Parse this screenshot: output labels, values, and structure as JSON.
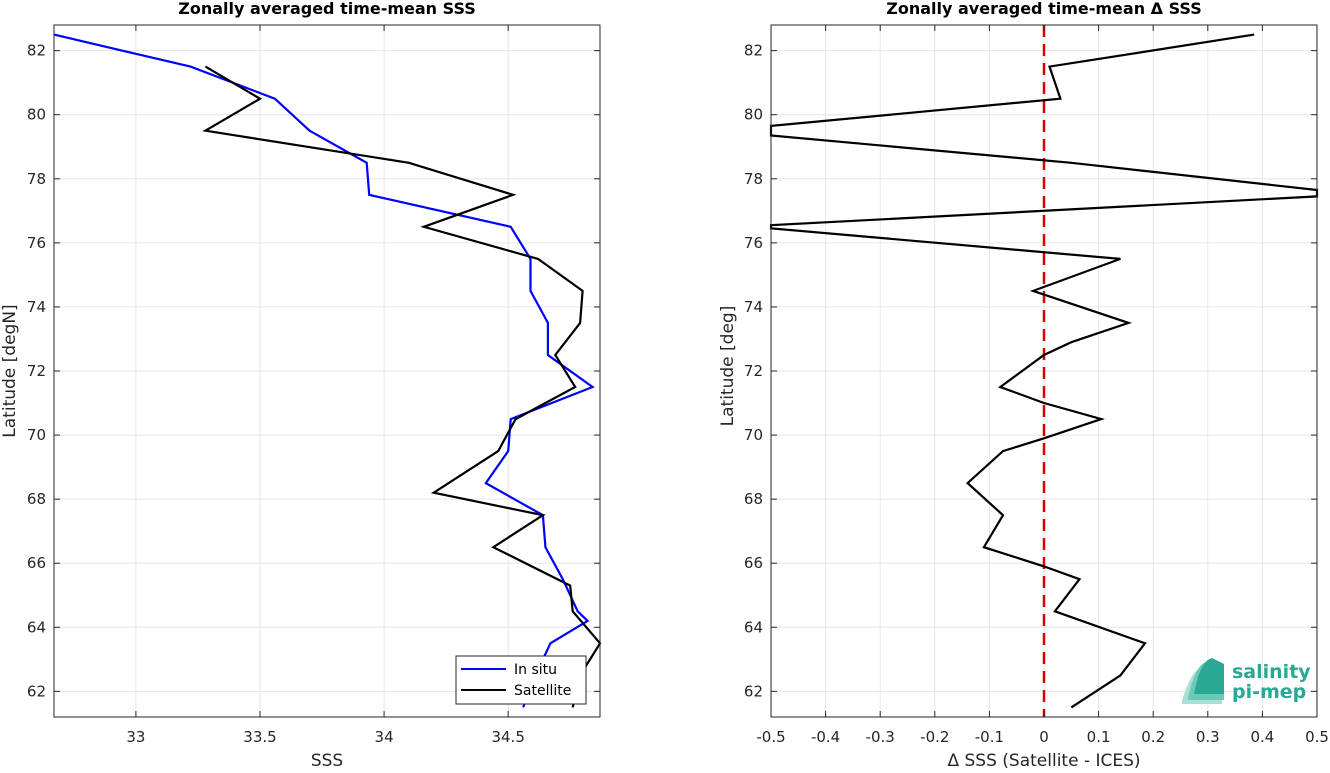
{
  "chart_data": [
    {
      "type": "line",
      "title": "Zonally averaged time-mean SSS",
      "xlabel": "SSS",
      "ylabel": "Latitude [degN]",
      "xlim": [
        32.67,
        34.87
      ],
      "ylim": [
        61.2,
        82.8
      ],
      "xticks": [
        "33",
        "33.5",
        "34",
        "34.5"
      ],
      "yticks": [
        "62",
        "64",
        "66",
        "68",
        "70",
        "72",
        "74",
        "76",
        "78",
        "80",
        "82"
      ],
      "grid": true,
      "legend_position": "bottom-right",
      "series": [
        {
          "name": "In situ",
          "color": "#0000ff",
          "points": [
            [
              32.67,
              82.5
            ],
            [
              33.22,
              81.5
            ],
            [
              33.56,
              80.5
            ],
            [
              33.7,
              79.5
            ],
            [
              33.93,
              78.5
            ],
            [
              33.94,
              77.5
            ],
            [
              34.51,
              76.5
            ],
            [
              34.59,
              75.5
            ],
            [
              34.59,
              74.5
            ],
            [
              34.66,
              73.5
            ],
            [
              34.66,
              72.5
            ],
            [
              34.84,
              71.5
            ],
            [
              34.51,
              70.5
            ],
            [
              34.5,
              69.5
            ],
            [
              34.41,
              68.5
            ],
            [
              34.64,
              67.5
            ],
            [
              34.65,
              66.5
            ],
            [
              34.72,
              65.5
            ],
            [
              34.78,
              64.5
            ],
            [
              34.82,
              64.2
            ],
            [
              34.67,
              63.5
            ],
            [
              34.61,
              62.5
            ],
            [
              34.56,
              61.5
            ]
          ]
        },
        {
          "name": "Satellite",
          "color": "#000000",
          "points": [
            [
              33.28,
              81.5
            ],
            [
              33.5,
              80.5
            ],
            [
              33.28,
              79.5
            ],
            [
              34.1,
              78.5
            ],
            [
              34.52,
              77.5
            ],
            [
              34.16,
              76.5
            ],
            [
              34.62,
              75.5
            ],
            [
              34.8,
              74.5
            ],
            [
              34.79,
              73.5
            ],
            [
              34.69,
              72.5
            ],
            [
              34.77,
              71.5
            ],
            [
              34.53,
              70.5
            ],
            [
              34.46,
              69.5
            ],
            [
              34.2,
              68.2
            ],
            [
              34.64,
              67.5
            ],
            [
              34.44,
              66.5
            ],
            [
              34.75,
              65.3
            ],
            [
              34.76,
              64.5
            ],
            [
              34.87,
              63.5
            ],
            [
              34.79,
              62.5
            ],
            [
              34.76,
              61.5
            ]
          ]
        }
      ]
    },
    {
      "type": "line",
      "title": "Zonally averaged time-mean Δ SSS",
      "xlabel": "Δ SSS (Satellite - ICES)",
      "ylabel": "Latitude [deg]",
      "xlim": [
        -0.5,
        0.5
      ],
      "ylim": [
        61.2,
        82.8
      ],
      "xticks": [
        "-0.5",
        "-0.4",
        "-0.3",
        "-0.2",
        "-0.1",
        "0",
        "0.1",
        "0.2",
        "0.3",
        "0.4",
        "0.5"
      ],
      "yticks": [
        "62",
        "64",
        "66",
        "68",
        "70",
        "72",
        "74",
        "76",
        "78",
        "80",
        "82"
      ],
      "grid": true,
      "reference_line": {
        "x": 0,
        "color": "#dd0000",
        "style": "dashed"
      },
      "series": [
        {
          "name": "",
          "color": "#000000",
          "points": [
            [
              0.385,
              82.5
            ],
            [
              0.01,
              81.5
            ],
            [
              0.03,
              80.5
            ],
            [
              -0.5,
              79.65
            ],
            [
              -0.5,
              79.35
            ],
            [
              0.05,
              78.5
            ],
            [
              0.5,
              77.65
            ],
            [
              0.5,
              77.45
            ],
            [
              -0.5,
              76.55
            ],
            [
              -0.5,
              76.45
            ],
            [
              0.14,
              75.5
            ],
            [
              -0.02,
              74.5
            ],
            [
              0.155,
              73.5
            ],
            [
              0.05,
              72.9
            ],
            [
              0.0,
              72.5
            ],
            [
              -0.08,
              71.5
            ],
            [
              0.0,
              71.0
            ],
            [
              0.105,
              70.5
            ],
            [
              0.0,
              69.9
            ],
            [
              -0.075,
              69.5
            ],
            [
              -0.14,
              68.5
            ],
            [
              -0.075,
              67.5
            ],
            [
              -0.11,
              66.5
            ],
            [
              0.0,
              65.9
            ],
            [
              0.065,
              65.5
            ],
            [
              0.02,
              64.5
            ],
            [
              0.185,
              63.5
            ],
            [
              0.14,
              62.5
            ],
            [
              0.05,
              61.5
            ]
          ]
        }
      ]
    }
  ],
  "logo": {
    "line1": "salinity",
    "line2": "pi-mep",
    "color": "#2aa894"
  }
}
